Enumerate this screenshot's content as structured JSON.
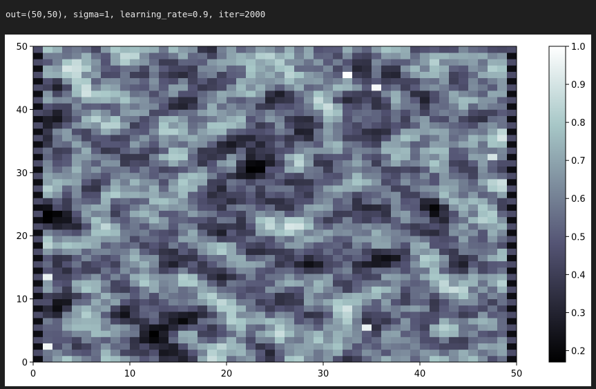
{
  "cell": {
    "output_text": "out=(50,50), sigma=1, learning_rate=0.9, iter=2000"
  },
  "chart_data": {
    "type": "heatmap",
    "grid": [
      50,
      50
    ],
    "colormap": "bone",
    "xlim": [
      0,
      50
    ],
    "ylim": [
      0,
      50
    ],
    "xticks": [
      "0",
      "10",
      "20",
      "30",
      "40",
      "50"
    ],
    "yticks": [
      "0",
      "10",
      "20",
      "30",
      "40",
      "50"
    ],
    "colorbar": {
      "min": 0.17,
      "max": 1.0,
      "ticks": [
        "0.2",
        "0.3",
        "0.4",
        "0.5",
        "0.6",
        "0.7",
        "0.8",
        "0.9",
        "1.0"
      ]
    },
    "values_note": "",
    "high_spots": [
      {
        "x": 1.5,
        "y": 13.5,
        "value": 0.95
      },
      {
        "x": 1.5,
        "y": 2.5,
        "value": 0.97
      },
      {
        "x": 32.5,
        "y": 45.5,
        "value": 1.0
      },
      {
        "x": 35.5,
        "y": 43.5,
        "value": 0.98
      },
      {
        "x": 34.5,
        "y": 5.5,
        "value": 0.95
      },
      {
        "x": 47.5,
        "y": 32.5,
        "value": 0.9
      }
    ]
  }
}
